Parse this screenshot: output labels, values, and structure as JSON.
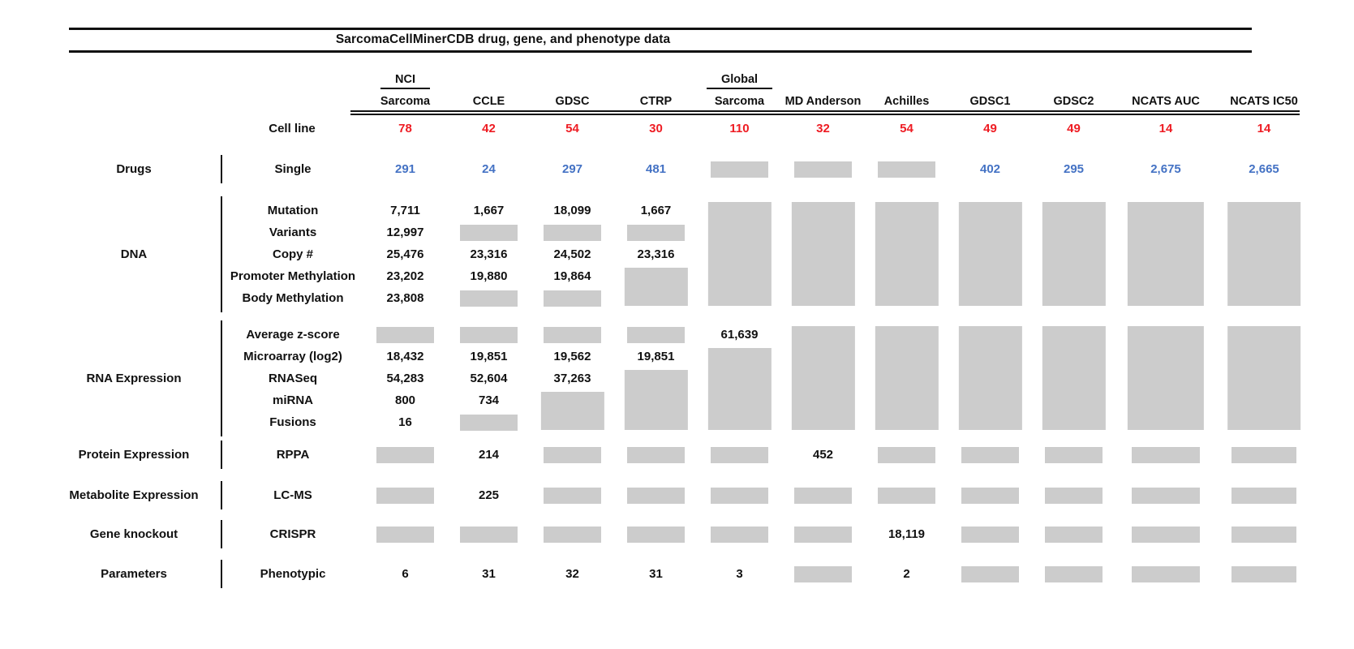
{
  "chart_data": {
    "type": "table",
    "title": "SarcomaCellMinerCDB drug, gene, and phenotype data",
    "cell_line_row_label": "Cell line",
    "colors": {
      "cell_line_counts": "#ee1c23",
      "drug_values": "#4472c4",
      "data_values": "#111111",
      "missing_box": "#cccccc",
      "rules": "#111111"
    },
    "columns": [
      {
        "group": "NCI",
        "name": "Sarcoma",
        "cell_lines": "78"
      },
      {
        "name": "CCLE",
        "cell_lines": "42"
      },
      {
        "name": "GDSC",
        "cell_lines": "54"
      },
      {
        "name": "CTRP",
        "cell_lines": "30"
      },
      {
        "group": "Global",
        "name": "Sarcoma",
        "cell_lines": "110"
      },
      {
        "name": "MD Anderson",
        "cell_lines": "32"
      },
      {
        "name": "Achilles",
        "cell_lines": "54"
      },
      {
        "name": "GDSC1",
        "cell_lines": "49"
      },
      {
        "name": "GDSC2",
        "cell_lines": "49"
      },
      {
        "name": "NCATS AUC",
        "cell_lines": "14"
      },
      {
        "name": "NCATS IC50",
        "cell_lines": "14"
      }
    ],
    "sections": [
      {
        "category": "Drugs",
        "value_color": "#4472c4",
        "rows": [
          {
            "label": "Single",
            "cells": [
              "291",
              "24",
              "297",
              "481",
              "G",
              "G",
              "G",
              "402",
              "295",
              "2,675",
              "2,665"
            ]
          }
        ]
      },
      {
        "category": "DNA",
        "value_color": "#111111",
        "rows": [
          {
            "label": "Mutation",
            "cells": [
              "7,711",
              "1,667",
              "18,099",
              "1,667",
              "G5",
              "G5",
              "G5",
              "G5",
              "G5",
              "G5",
              "G5"
            ]
          },
          {
            "label": "Variants",
            "cells": [
              "12,997",
              "G",
              "G",
              "G",
              "-",
              "-",
              "-",
              "-",
              "-",
              "-",
              "-"
            ]
          },
          {
            "label": "Copy #",
            "cells": [
              "25,476",
              "23,316",
              "24,502",
              "23,316",
              "-",
              "-",
              "-",
              "-",
              "-",
              "-",
              "-"
            ]
          },
          {
            "label": "Promoter Methylation",
            "cells": [
              "23,202",
              "19,880",
              "19,864",
              "G2",
              "-",
              "-",
              "-",
              "-",
              "-",
              "-",
              "-"
            ]
          },
          {
            "label": "Body Methylation",
            "cells": [
              "23,808",
              "G",
              "G",
              "-",
              "-",
              "-",
              "-",
              "-",
              "-",
              "-",
              "-"
            ]
          }
        ]
      },
      {
        "category": "RNA Expression",
        "value_color": "#111111",
        "rows": [
          {
            "label": "Average z-score",
            "cells": [
              "G",
              "G",
              "G",
              "G",
              "61,639",
              "G5",
              "G5",
              "G5",
              "G5",
              "G5",
              "G5"
            ]
          },
          {
            "label": "Microarray (log2)",
            "cells": [
              "18,432",
              "19,851",
              "19,562",
              "19,851",
              "G4",
              "-",
              "-",
              "-",
              "-",
              "-",
              "-"
            ]
          },
          {
            "label": "RNASeq",
            "cells": [
              "54,283",
              "52,604",
              "37,263",
              "G3",
              "-",
              "-",
              "-",
              "-",
              "-",
              "-",
              "-"
            ]
          },
          {
            "label": "miRNA",
            "cells": [
              "800",
              "734",
              "G2",
              "-",
              "-",
              "-",
              "-",
              "-",
              "-",
              "-",
              "-"
            ]
          },
          {
            "label": "Fusions",
            "cells": [
              "16",
              "G",
              "-",
              "-",
              "-",
              "-",
              "-",
              "-",
              "-",
              "-",
              "-"
            ]
          }
        ]
      },
      {
        "category": "Protein Expression",
        "value_color": "#111111",
        "rows": [
          {
            "label": "RPPA",
            "cells": [
              "G",
              "214",
              "G",
              "G",
              "G",
              "452",
              "G",
              "G",
              "G",
              "G",
              "G"
            ]
          }
        ]
      },
      {
        "category": "Metabolite Expression",
        "value_color": "#111111",
        "rows": [
          {
            "label": "LC-MS",
            "cells": [
              "G",
              "225",
              "G",
              "G",
              "G",
              "G",
              "G",
              "G",
              "G",
              "G",
              "G"
            ]
          }
        ]
      },
      {
        "category": "Gene knockout",
        "value_color": "#111111",
        "rows": [
          {
            "label": "CRISPR",
            "cells": [
              "G",
              "G",
              "G",
              "G",
              "G",
              "G",
              "18,119",
              "G",
              "G",
              "G",
              "G"
            ]
          }
        ]
      },
      {
        "category": "Parameters",
        "value_color": "#111111",
        "rows": [
          {
            "label": "Phenotypic",
            "cells": [
              "6",
              "31",
              "32",
              "31",
              "3",
              "G",
              "2",
              "G",
              "G",
              "G",
              "G"
            ]
          }
        ]
      }
    ]
  }
}
